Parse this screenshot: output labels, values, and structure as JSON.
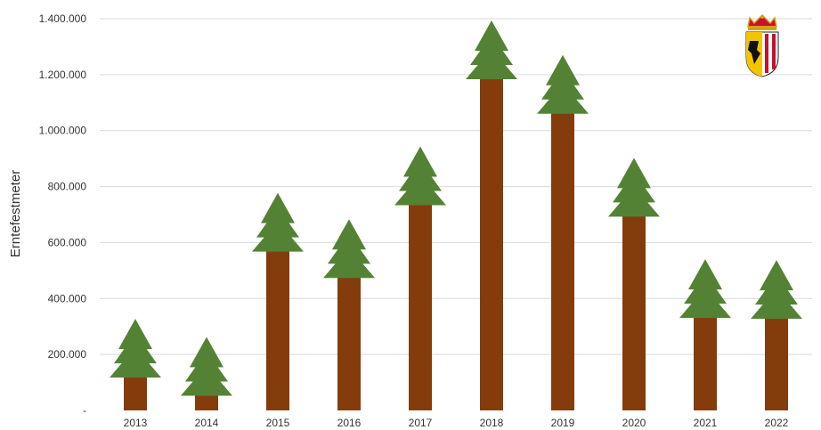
{
  "chart_data": {
    "type": "bar",
    "title": "",
    "xlabel": "",
    "ylabel": "Erntefestmeter",
    "categories": [
      "2013",
      "2014",
      "2015",
      "2016",
      "2017",
      "2018",
      "2019",
      "2020",
      "2021",
      "2022"
    ],
    "values": [
      162000,
      97000,
      612000,
      518000,
      778000,
      1228000,
      1105000,
      737000,
      375000,
      372000
    ],
    "ylim": [
      0,
      1400000
    ],
    "yticks": [
      {
        "value": 0,
        "label": "-"
      },
      {
        "value": 200000,
        "label": "200.000"
      },
      {
        "value": 400000,
        "label": "400.000"
      },
      {
        "value": 600000,
        "label": "600.000"
      },
      {
        "value": 800000,
        "label": "800.000"
      },
      {
        "value": 1000000,
        "label": "1.000.000"
      },
      {
        "value": 1200000,
        "label": "1.200.000"
      },
      {
        "value": 1400000,
        "label": "1.400.000"
      }
    ],
    "grid": true,
    "legend": "none",
    "colors": {
      "trunk": "#843c0c",
      "tree": "#548235",
      "grid": "#d9d9d9"
    }
  },
  "emblem": {
    "icon": "coat-of-arms-upper-austria-icon"
  }
}
